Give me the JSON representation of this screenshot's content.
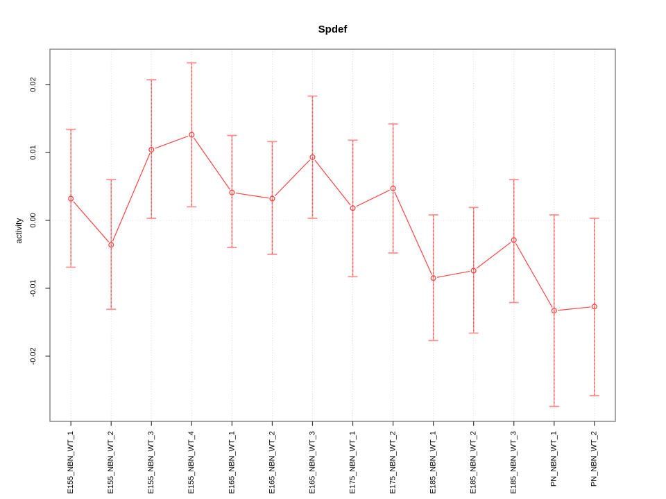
{
  "chart_data": {
    "type": "line",
    "subtype": "points-with-error-bars",
    "title": "Spdef",
    "xlabel": "",
    "ylabel": "activity",
    "legend": "none",
    "categories": [
      "E155_NBN_WT_1",
      "E155_NBN_WT_2",
      "E155_NBN_WT_3",
      "E155_NBN_WT_4",
      "E165_NBN_WT_1",
      "E165_NBN_WT_2",
      "E165_NBN_WT_3",
      "E175_NBN_WT_1",
      "E175_NBN_WT_2",
      "E185_NBN_WT_1",
      "E185_NBN_WT_2",
      "E185_NBN_WT_3",
      "PN_NBN_WT_1",
      "PN_NBN_WT_2"
    ],
    "series": [
      {
        "name": "Spdef activity",
        "values": [
          0.0032,
          -0.0036,
          0.0104,
          0.0126,
          0.0041,
          0.0032,
          0.0093,
          0.0018,
          0.0047,
          -0.0085,
          -0.0074,
          -0.0029,
          -0.0133,
          -0.0127
        ],
        "err_high": [
          0.0134,
          0.006,
          0.0207,
          0.0232,
          0.0125,
          0.0116,
          0.0183,
          0.0118,
          0.0142,
          0.0008,
          0.0019,
          0.006,
          0.0008,
          0.0003
        ],
        "err_low": [
          -0.0069,
          -0.0131,
          0.0003,
          0.002,
          -0.004,
          -0.005,
          0.0003,
          -0.0083,
          -0.0048,
          -0.0177,
          -0.0166,
          -0.0121,
          -0.0274,
          -0.0258
        ]
      }
    ],
    "yticks": [
      -0.02,
      -0.01,
      0,
      0.01,
      0.02
    ],
    "ytick_labels": [
      "-0.02",
      "-0.01",
      "0.00",
      "0.01",
      "0.02"
    ],
    "ylim": [
      -0.0296,
      0.0252
    ],
    "grid": {
      "vertical_dotted_per_category": true,
      "horizontal_dotted_zero_line": true
    },
    "marker": "open-circle",
    "colors": {
      "series": "#ff4242",
      "error_bar": "#ff9090",
      "error_bar_dash": "#ee5555",
      "grid": "#d9d9d9",
      "zero_line": "#e2e2e2",
      "frame": "#777777",
      "tick": "#333333",
      "text": "#000000",
      "background": "#ffffff"
    }
  }
}
